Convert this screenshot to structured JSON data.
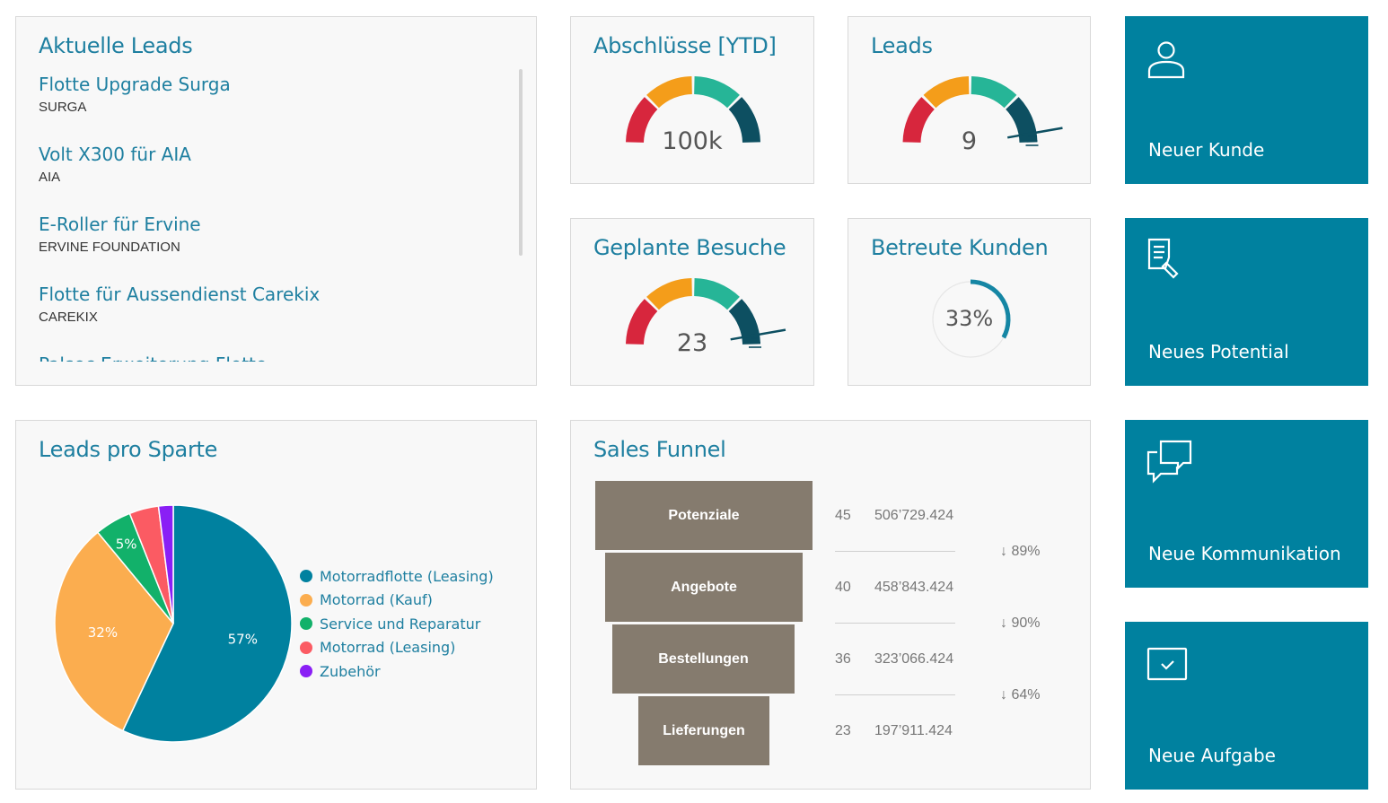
{
  "leads": {
    "title": "Aktuelle Leads",
    "items": [
      {
        "title": "Flotte Upgrade Surga",
        "company": "SURGA"
      },
      {
        "title": "Volt X300 für AIA",
        "company": "AIA"
      },
      {
        "title": "E-Roller für Ervine",
        "company": "ERVINE FOUNDATION"
      },
      {
        "title": "Flotte für Aussendienst Carekix",
        "company": "CAREKIX"
      },
      {
        "title": "Palsec Erweiterung Flotte",
        "company": ""
      }
    ]
  },
  "kpis": {
    "abschluesse": {
      "title": "Abschlüsse [YTD]",
      "value": "100k",
      "level": 1.0
    },
    "leads": {
      "title": "Leads",
      "value": "9",
      "level": 0.9
    },
    "besuche": {
      "title": "Geplante Besuche",
      "value": "23",
      "level": 0.9
    },
    "kunden": {
      "title": "Betreute Kunden",
      "value": "33%",
      "progress": 0.33
    }
  },
  "gauge_colors": [
    "#d7263d",
    "#f49d1a",
    "#26b597",
    "#0d4f61"
  ],
  "tiles": [
    {
      "label": "Neuer Kunde",
      "icon": "user-icon"
    },
    {
      "label": "Neues Potential",
      "icon": "document-edit-icon"
    },
    {
      "label": "Neue Kommunikation",
      "icon": "chat-icon"
    },
    {
      "label": "Neue Aufgabe",
      "icon": "checkbox-icon"
    }
  ],
  "pie": {
    "title": "Leads pro Sparte",
    "chart_data": {
      "type": "pie",
      "slices": [
        {
          "name": "Motorradflotte (Leasing)",
          "value": 57,
          "label": "57%",
          "color": "#00819f"
        },
        {
          "name": "Motorrad (Kauf)",
          "value": 32,
          "label": "32%",
          "color": "#fbad4f"
        },
        {
          "name": "Service und Reparatur",
          "value": 5,
          "label": "5%",
          "color": "#12b16a"
        },
        {
          "name": "Motorrad (Leasing)",
          "value": 4,
          "label": "",
          "color": "#fb5b63"
        },
        {
          "name": "Zubehör",
          "value": 2,
          "label": "",
          "color": "#8a1ff5"
        }
      ]
    }
  },
  "funnel": {
    "title": "Sales Funnel",
    "stages": [
      {
        "label": "Potenziale",
        "count": "45",
        "sum": "506’729.424"
      },
      {
        "label": "Angebote",
        "count": "40",
        "sum": "458’843.424"
      },
      {
        "label": "Bestellungen",
        "count": "36",
        "sum": "323’066.424"
      },
      {
        "label": "Lieferungen",
        "count": "23",
        "sum": "197’911.424"
      }
    ],
    "conversions": [
      "↓ 89%",
      "↓ 90%",
      "↓ 64%"
    ]
  }
}
